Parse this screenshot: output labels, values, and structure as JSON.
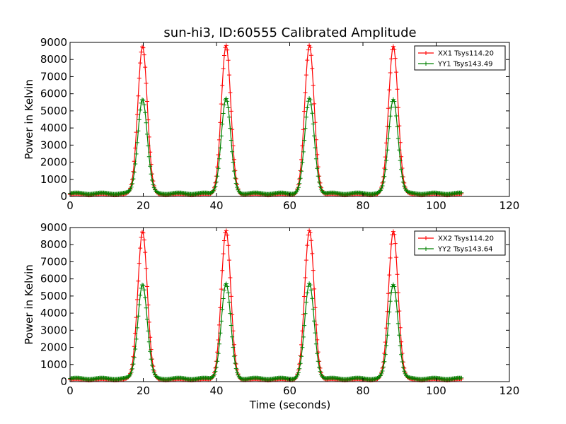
{
  "figure": {
    "title": "sun-hi3, ID:60555 Calibrated Amplitude",
    "xlabel": "Time (seconds)"
  },
  "colors": {
    "red": "#ff0000",
    "green": "#008000"
  },
  "chart_data": [
    {
      "type": "line",
      "ylabel": "Power in Kelvin",
      "xlim": [
        0,
        120
      ],
      "ylim": [
        0,
        9000
      ],
      "xticks": [
        "0",
        "20",
        "40",
        "60",
        "80",
        "100",
        "120"
      ],
      "yticks": [
        "0",
        "1000",
        "2000",
        "3000",
        "4000",
        "5000",
        "6000",
        "7000",
        "8000",
        "9000"
      ],
      "x_range": [
        0,
        107
      ],
      "peak_centers": [
        19.8,
        42.6,
        65.4,
        88.3
      ],
      "peak_sigma": 1.3,
      "legend_position": "top-right",
      "series": [
        {
          "name": "XX1 Tsys114.20",
          "color": "#ff0000",
          "baseline": 120,
          "peak": 8800
        },
        {
          "name": "YY1 Tsys143.49",
          "color": "#008000",
          "baseline": 180,
          "peak": 5700
        }
      ]
    },
    {
      "type": "line",
      "ylabel": "Power in Kelvin",
      "xlim": [
        0,
        120
      ],
      "ylim": [
        0,
        9000
      ],
      "xticks": [
        "0",
        "20",
        "40",
        "60",
        "80",
        "100",
        "120"
      ],
      "yticks": [
        "0",
        "1000",
        "2000",
        "3000",
        "4000",
        "5000",
        "6000",
        "7000",
        "8000",
        "9000"
      ],
      "x_range": [
        0,
        107
      ],
      "peak_centers": [
        19.8,
        42.6,
        65.4,
        88.3
      ],
      "peak_sigma": 1.3,
      "legend_position": "top-right",
      "series": [
        {
          "name": "XX2 Tsys114.20",
          "color": "#ff0000",
          "baseline": 120,
          "peak": 8800
        },
        {
          "name": "YY2 Tsys143.64",
          "color": "#008000",
          "baseline": 180,
          "peak": 5700
        }
      ]
    }
  ]
}
